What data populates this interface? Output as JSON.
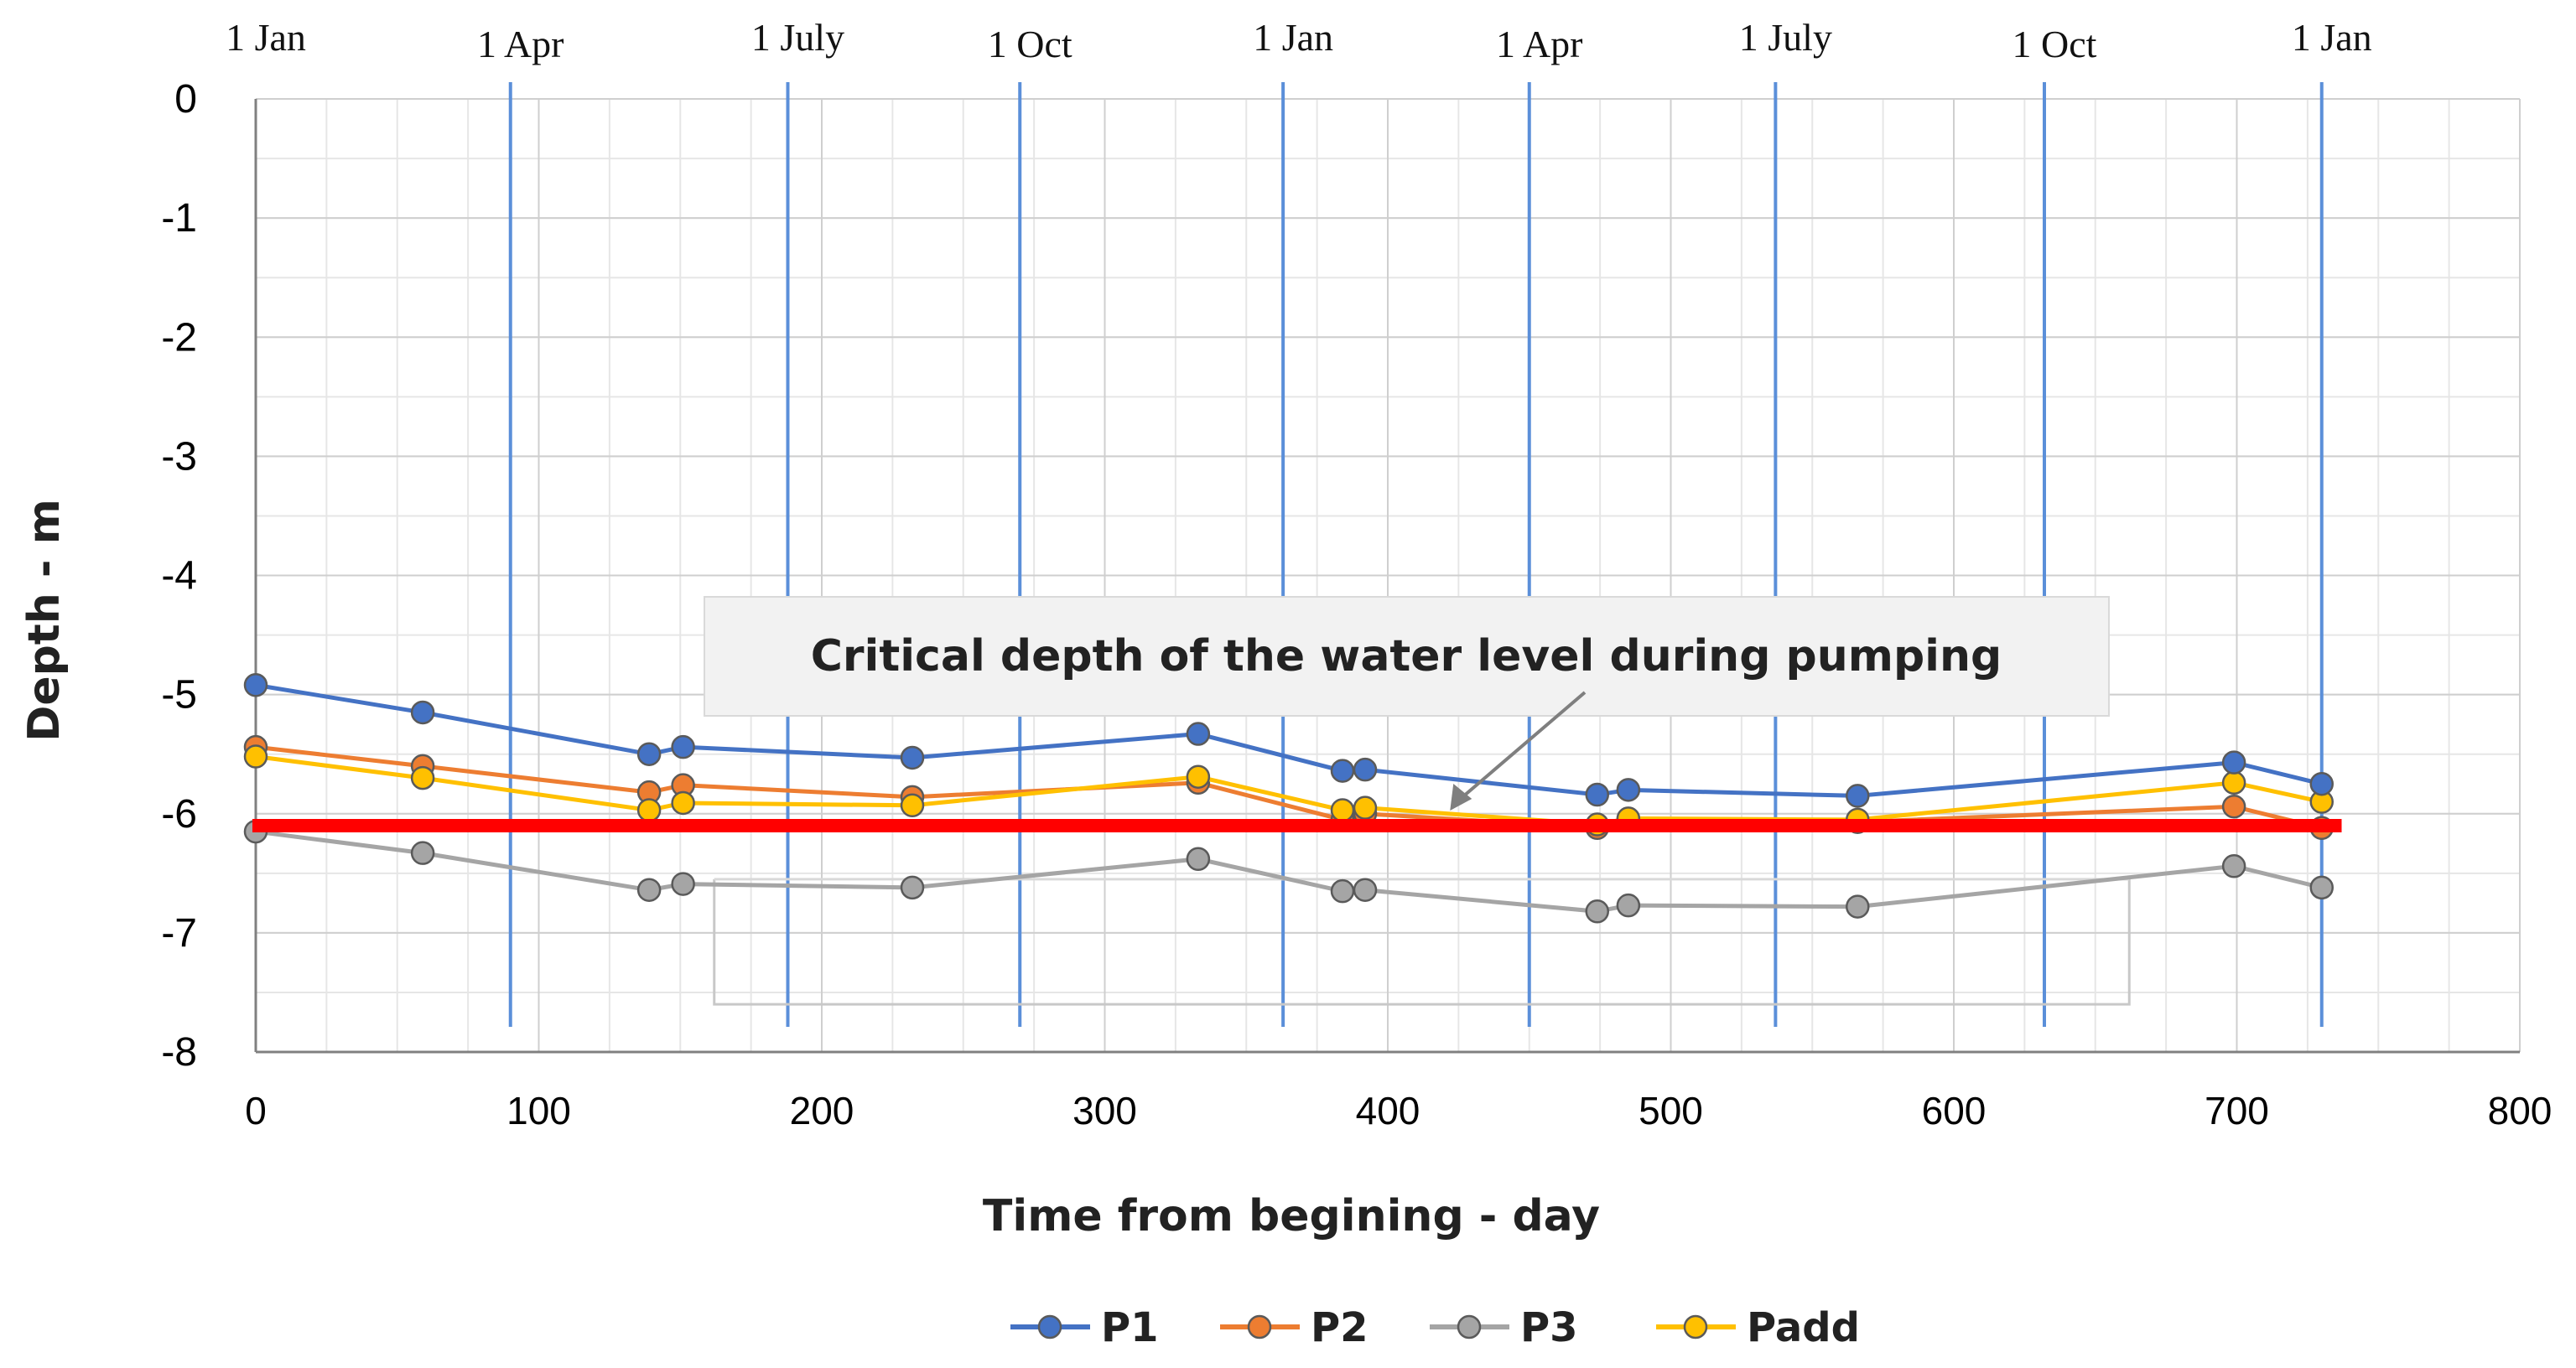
{
  "chart_data": {
    "type": "line",
    "title": "",
    "xlabel": "Time from begining - day",
    "ylabel": "Depth - m",
    "xlim": [
      0,
      800
    ],
    "ylim": [
      -8,
      0
    ],
    "x_ticks": [
      0,
      100,
      200,
      300,
      400,
      500,
      600,
      700,
      800
    ],
    "y_ticks": [
      0,
      -1,
      -2,
      -3,
      -4,
      -5,
      -6,
      -7,
      -8
    ],
    "grid": true,
    "date_markers": [
      {
        "label": "1 Jan",
        "day": 0
      },
      {
        "label": "1 Apr",
        "day": 90
      },
      {
        "label": "1 July",
        "day": 188
      },
      {
        "label": "1 Oct",
        "day": 270
      },
      {
        "label": "1 Jan",
        "day": 363
      },
      {
        "label": "1 Apr",
        "day": 450
      },
      {
        "label": "1 July",
        "day": 537
      },
      {
        "label": "1 Oct",
        "day": 632
      },
      {
        "label": "1 Jan",
        "day": 730
      }
    ],
    "series": [
      {
        "name": "P1",
        "color": "#4472C4",
        "x": [
          0,
          59,
          139,
          151,
          232,
          333,
          384,
          392,
          474,
          485,
          566,
          699,
          730
        ],
        "y": [
          -4.92,
          -5.15,
          -5.5,
          -5.44,
          -5.53,
          -5.33,
          -5.64,
          -5.63,
          -5.84,
          -5.8,
          -5.85,
          -5.57,
          -5.75
        ]
      },
      {
        "name": "P2",
        "color": "#ED7D31",
        "x": [
          0,
          59,
          139,
          151,
          232,
          333,
          384,
          392,
          474,
          485,
          566,
          699,
          730
        ],
        "y": [
          -5.44,
          -5.6,
          -5.82,
          -5.76,
          -5.86,
          -5.74,
          -6.05,
          -6.0,
          -6.12,
          -6.05,
          -6.07,
          -5.94,
          -6.12
        ]
      },
      {
        "name": "P3",
        "color": "#A5A5A5",
        "x": [
          0,
          59,
          139,
          151,
          232,
          333,
          384,
          392,
          474,
          485,
          566,
          699,
          730
        ],
        "y": [
          -6.15,
          -6.33,
          -6.64,
          -6.59,
          -6.62,
          -6.38,
          -6.65,
          -6.64,
          -6.82,
          -6.77,
          -6.78,
          -6.44,
          -6.62
        ]
      },
      {
        "name": "Padd",
        "color": "#FFC000",
        "x": [
          0,
          59,
          139,
          151,
          232,
          333,
          384,
          392,
          474,
          485,
          566,
          699,
          730
        ],
        "y": [
          -5.52,
          -5.7,
          -5.97,
          -5.91,
          -5.93,
          -5.69,
          -5.97,
          -5.95,
          -6.09,
          -6.04,
          -6.05,
          -5.74,
          -5.9
        ]
      }
    ],
    "critical_line": {
      "y": -6.1,
      "color": "#FF0000"
    },
    "annotation": {
      "text": "Critical depth of the water level during pumping",
      "target_x": 422,
      "target_y": -6.1
    },
    "legend": {
      "position": "bottom-center",
      "entries": [
        "P1",
        "P2",
        "P3",
        "Padd"
      ]
    }
  }
}
